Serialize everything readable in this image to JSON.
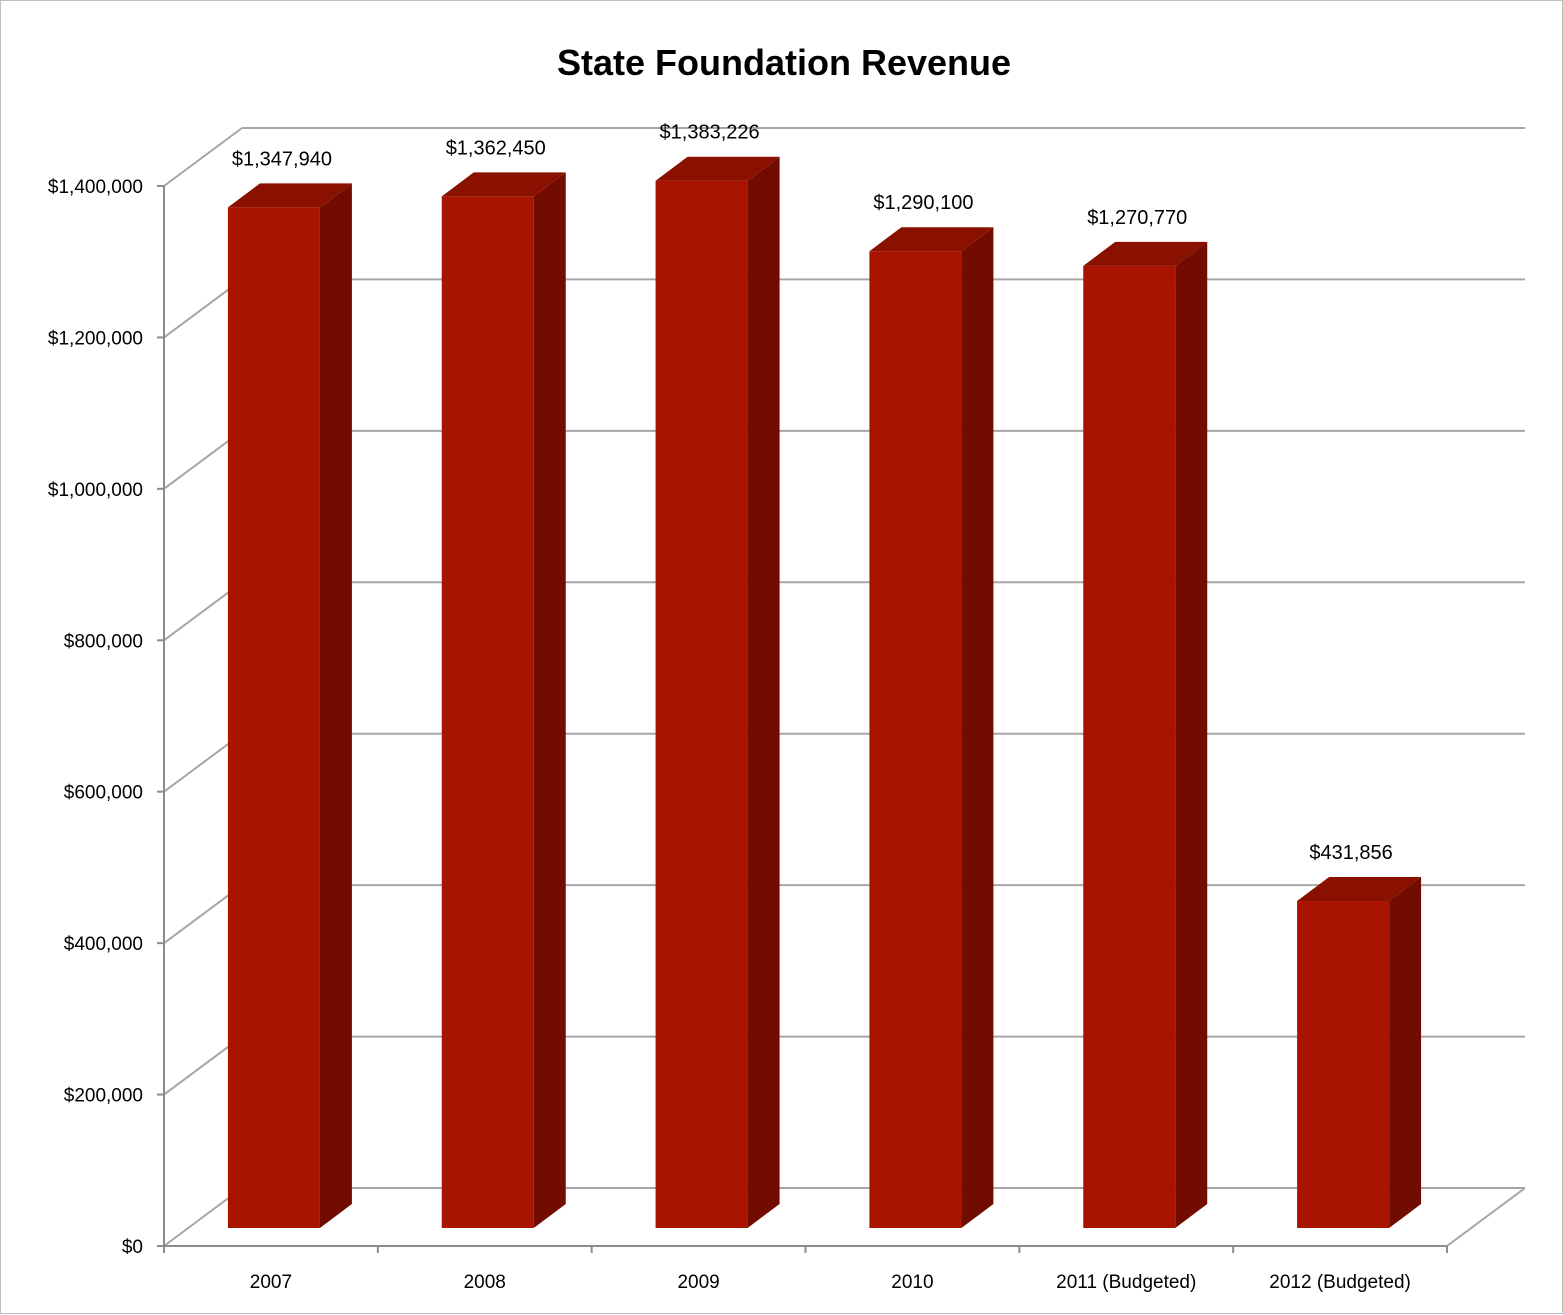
{
  "chart_data": {
    "type": "bar",
    "title": "State Foundation Revenue",
    "xlabel": "",
    "ylabel": "",
    "categories": [
      "2007",
      "2008",
      "2009",
      "2010",
      "2011 (Budgeted)",
      "2012 (Budgeted)"
    ],
    "values": [
      1347940,
      1362450,
      1383226,
      1290100,
      1270770,
      431856
    ],
    "data_labels": [
      "$1,347,940",
      "$1,362,450",
      "$1,383,226",
      "$1,290,100",
      "$1,270,770",
      "$431,856"
    ],
    "ylim": [
      0,
      1400000
    ],
    "yticks": [
      0,
      200000,
      400000,
      600000,
      800000,
      1000000,
      1200000,
      1400000
    ],
    "ytick_labels": [
      "$0",
      "$200,000",
      "$400,000",
      "$600,000",
      "$800,000",
      "$1,000,000",
      "$1,200,000",
      "$1,400,000"
    ],
    "grid": true,
    "style": "3d-column",
    "legend": "none",
    "colors": {
      "bar_front": "#a81400",
      "bar_side": "#730c00",
      "bar_top": "#8a1000",
      "grid": "#a6a6a6",
      "axis": "#8c8c8c"
    }
  }
}
